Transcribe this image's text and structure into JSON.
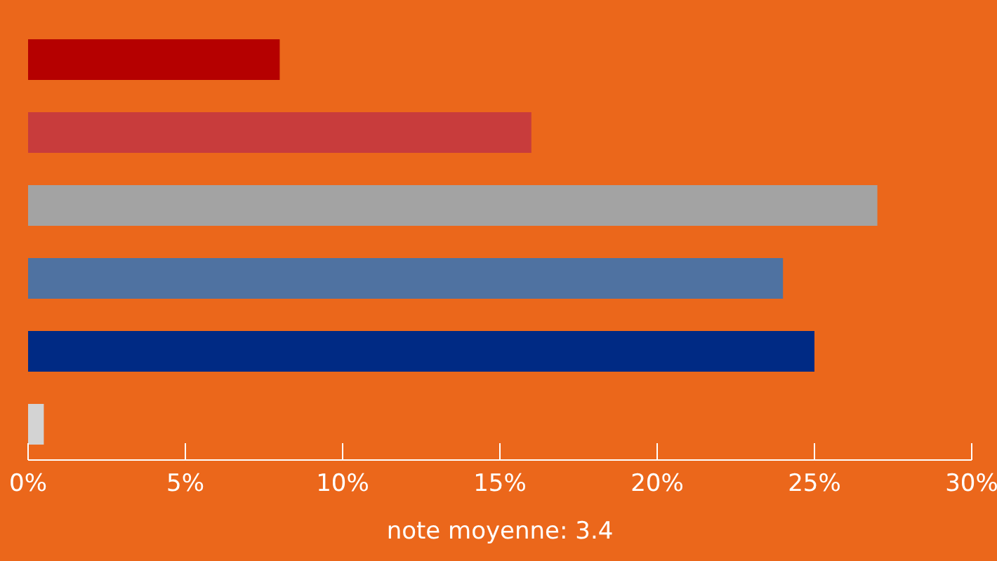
{
  "chart_data": {
    "type": "bar",
    "orientation": "horizontal",
    "xlabel": "note moyenne: 3.4",
    "categories": [
      null,
      null,
      null,
      null,
      null,
      null
    ],
    "values": [
      8,
      16,
      27,
      24,
      25,
      0.5
    ],
    "colors": [
      "#b50000",
      "#c83c3c",
      "#a3a3a3",
      "#4f72a1",
      "#002a84",
      "#d3d3d3"
    ],
    "xlim": [
      0,
      30
    ],
    "xticks": [
      {
        "value": 0,
        "label": "0%"
      },
      {
        "value": 5,
        "label": "5%"
      },
      {
        "value": 10,
        "label": "10%"
      },
      {
        "value": 15,
        "label": "15%"
      },
      {
        "value": 20,
        "label": "20%"
      },
      {
        "value": 25,
        "label": "25%"
      },
      {
        "value": 30,
        "label": "30%"
      }
    ],
    "tick_labels": "x",
    "grid": false,
    "legend": false
  }
}
